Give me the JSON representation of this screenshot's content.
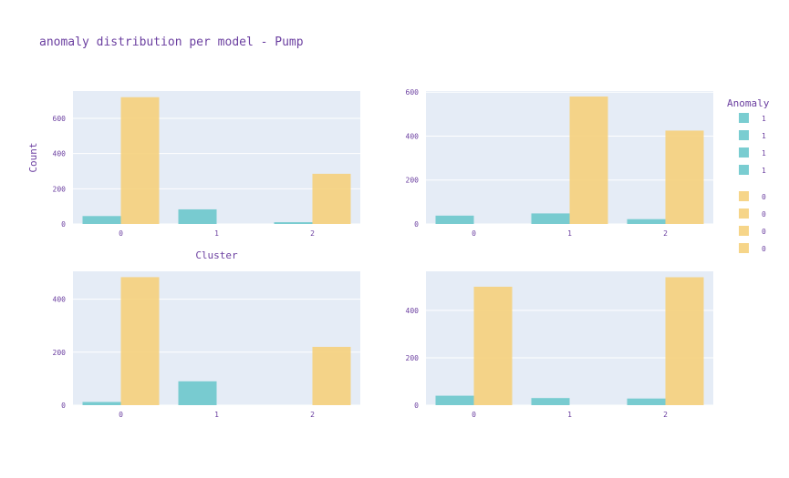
{
  "chart_data": {
    "type": "bar",
    "title": "anomaly distribution per model - Pump",
    "colors": {
      "anomaly_1": "#6cc8cc",
      "anomaly_0": "#f5d07c",
      "plot_bg": "#e5ecf6",
      "text": "#6b3fa0"
    },
    "legend": {
      "title": "Anomaly",
      "placement": "right",
      "entries": [
        {
          "label": "1",
          "series": "anomaly_1"
        },
        {
          "label": "1",
          "series": "anomaly_1"
        },
        {
          "label": "1",
          "series": "anomaly_1"
        },
        {
          "label": "1",
          "series": "anomaly_1"
        },
        {
          "label": "0",
          "series": "anomaly_0"
        },
        {
          "label": "0",
          "series": "anomaly_0"
        },
        {
          "label": "0",
          "series": "anomaly_0"
        },
        {
          "label": "0",
          "series": "anomaly_0"
        }
      ]
    },
    "subplots": [
      {
        "categories": [
          "0",
          "1",
          "2"
        ],
        "xlabel": "Cluster",
        "ylabel": "Count",
        "ylim": [
          0,
          755
        ],
        "yticks": [
          0,
          200,
          400,
          600
        ],
        "series": [
          {
            "name": "1",
            "color_key": "anomaly_1",
            "values": [
              45,
              83,
              10
            ]
          },
          {
            "name": "0",
            "color_key": "anomaly_0",
            "values": [
              720,
              0,
              285
            ]
          }
        ]
      },
      {
        "categories": [
          "0",
          "1",
          "2"
        ],
        "xlabel": "",
        "ylabel": "",
        "ylim": [
          0,
          605
        ],
        "yticks": [
          0,
          200,
          400,
          600
        ],
        "series": [
          {
            "name": "1",
            "color_key": "anomaly_1",
            "values": [
              38,
              48,
              22
            ]
          },
          {
            "name": "0",
            "color_key": "anomaly_0",
            "values": [
              0,
              580,
              425
            ]
          }
        ]
      },
      {
        "categories": [
          "0",
          "1",
          "2"
        ],
        "xlabel": "",
        "ylabel": "",
        "ylim": [
          0,
          505
        ],
        "yticks": [
          0,
          200,
          400
        ],
        "series": [
          {
            "name": "1",
            "color_key": "anomaly_1",
            "values": [
              12,
              90,
              0
            ]
          },
          {
            "name": "0",
            "color_key": "anomaly_0",
            "values": [
              483,
              0,
              220
            ]
          }
        ]
      },
      {
        "categories": [
          "0",
          "1",
          "2"
        ],
        "xlabel": "",
        "ylabel": "",
        "ylim": [
          0,
          565
        ],
        "yticks": [
          0,
          200,
          400
        ],
        "series": [
          {
            "name": "1",
            "color_key": "anomaly_1",
            "values": [
              40,
              30,
              28
            ]
          },
          {
            "name": "0",
            "color_key": "anomaly_0",
            "values": [
              500,
              0,
              540
            ]
          }
        ]
      }
    ]
  }
}
